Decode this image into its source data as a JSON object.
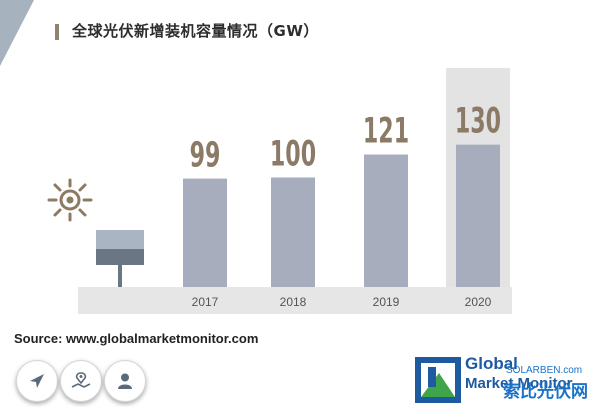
{
  "title": "全球光伏新增装机容量情况（GW）",
  "source": "Source: www.globalmarketmonitor.com",
  "chart_data": {
    "type": "bar",
    "categories": [
      "2017",
      "2018",
      "2019",
      "2020"
    ],
    "values": [
      99,
      100,
      121,
      130
    ],
    "title": "全球光伏新增装机容量情况（GW）",
    "xlabel": "",
    "ylabel": "",
    "highlight_category": "2020",
    "grid": false,
    "legend": "none"
  },
  "icons": {
    "sun": "sun-icon",
    "solar_panel": "solar-panel-icon",
    "navigation": "navigation-arrow-icon",
    "map": "map-pin-icon",
    "user": "user-icon"
  },
  "logo": {
    "line1": "Global",
    "line2": "Market Monitor"
  },
  "watermark": {
    "line1": "SOLARBEN.com",
    "line2": "索比光伏网"
  },
  "colors": {
    "bar": "#a7adbd",
    "value_label": "#8a7a66",
    "axis_band": "#e6e6e6",
    "highlight_band": "#e3e3e3",
    "logo_blue": "#1e5aa0",
    "logo_green": "#3ea54a"
  }
}
